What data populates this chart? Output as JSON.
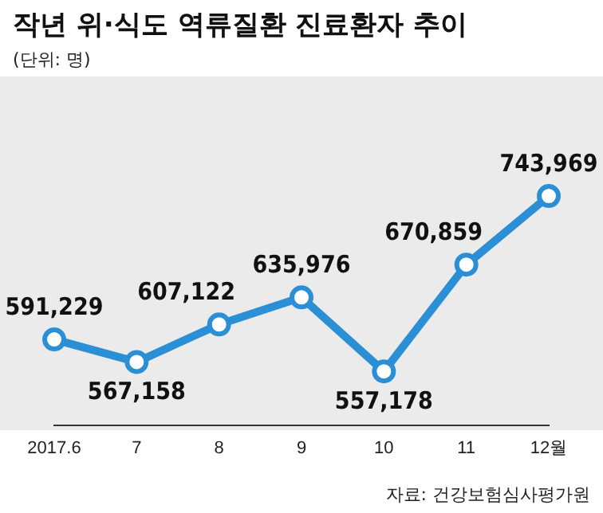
{
  "chart_data": {
    "type": "line",
    "title": "작년 위·식도 역류질환 진료환자 추이",
    "subtitle": "(단위: 명)",
    "annotations": [
      "자료: 건강보험심사평가원"
    ],
    "categories": [
      "2017.6",
      "7",
      "8",
      "9",
      "10",
      "11",
      "12월"
    ],
    "series": [
      {
        "color": "#2b8fd6",
        "values": [
          591229,
          567158,
          607122,
          635976,
          557178,
          670859,
          743969
        ],
        "value_labels": [
          "591,229",
          "567,158",
          "607,122",
          "635,976",
          "557,178",
          "670,859",
          "743,969"
        ]
      }
    ],
    "grid": false,
    "legend": false,
    "marker": "circle",
    "line_style": "solid"
  }
}
